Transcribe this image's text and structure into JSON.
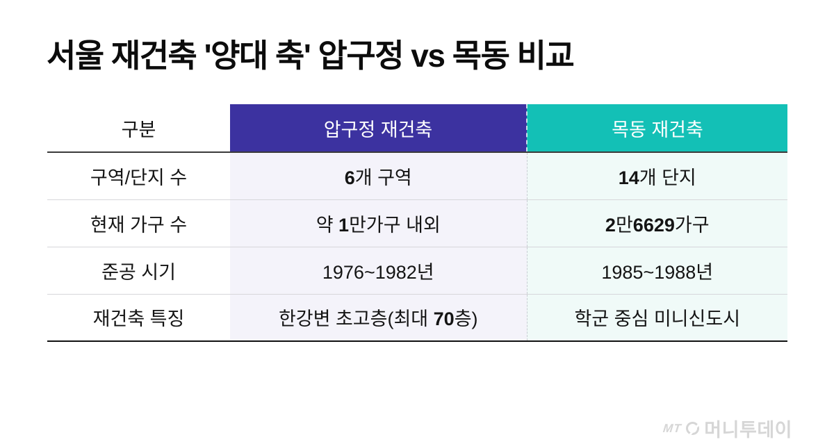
{
  "title": "서울 재건축 '양대 축' 압구정 vs 목동 비교",
  "colors": {
    "apgujeong_header_bg": "#3c32a0",
    "mokdong_header_bg": "#13c0b6",
    "apgujeong_cell_bg": "#f4f3fa",
    "mokdong_cell_bg": "#f0faf8",
    "header_text": "#ffffff",
    "body_text": "#141414",
    "logo_gray": "#d6d6d6"
  },
  "table": {
    "header": {
      "category": "구분",
      "apgujeong": "압구정 재건축",
      "mokdong": "목동 재건축"
    },
    "rows": [
      {
        "label": "구역/단지 수",
        "apgujeong": [
          {
            "t": "6",
            "b": true
          },
          {
            "t": "개 구역",
            "b": false
          }
        ],
        "mokdong": [
          {
            "t": "14",
            "b": true
          },
          {
            "t": "개 단지",
            "b": false
          }
        ]
      },
      {
        "label": "현재 가구 수",
        "apgujeong": [
          {
            "t": "약 ",
            "b": false
          },
          {
            "t": "1",
            "b": true
          },
          {
            "t": "만가구 내외",
            "b": false
          }
        ],
        "mokdong": [
          {
            "t": "2",
            "b": true
          },
          {
            "t": "만",
            "b": false
          },
          {
            "t": "6629",
            "b": true
          },
          {
            "t": "가구",
            "b": false
          }
        ]
      },
      {
        "label": "준공 시기",
        "apgujeong": [
          {
            "t": "1976~1982년",
            "b": false
          }
        ],
        "mokdong": [
          {
            "t": "1985~1988년",
            "b": false
          }
        ]
      },
      {
        "label": "재건축 특징",
        "apgujeong": [
          {
            "t": "한강변 초고층(최대 ",
            "b": false
          },
          {
            "t": "70",
            "b": true
          },
          {
            "t": "층)",
            "b": false
          }
        ],
        "mokdong": [
          {
            "t": "학군 중심 미니신도시",
            "b": false
          }
        ]
      }
    ]
  },
  "footer": {
    "mt": "MT",
    "logo_icon": "slashed-circle-icon",
    "brand": "머니투데이"
  }
}
